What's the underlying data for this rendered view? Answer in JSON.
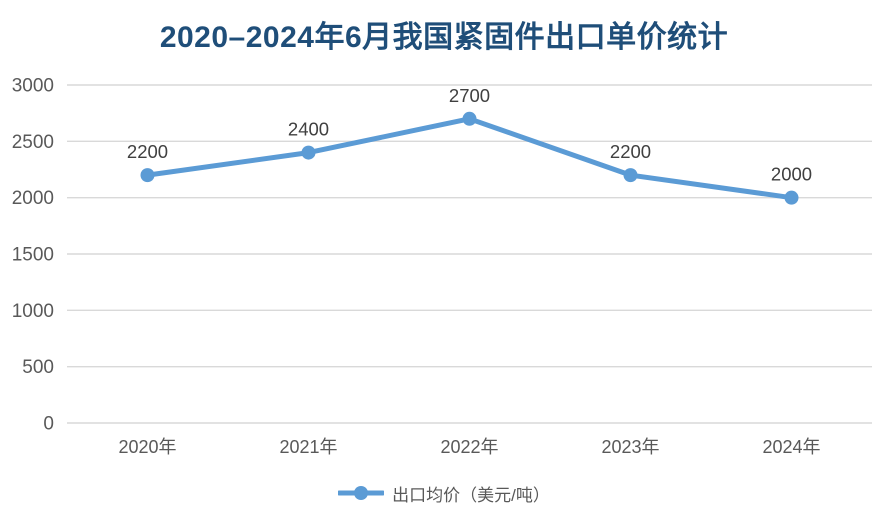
{
  "chart_data": {
    "type": "line",
    "title": "2020–2024年6月我国紧固件出口单价统计",
    "categories": [
      "2020年",
      "2021年",
      "2022年",
      "2023年",
      "2024年"
    ],
    "series": [
      {
        "name": "出口均价（美元/吨）",
        "values": [
          2200,
          2400,
          2700,
          2200,
          2000
        ]
      }
    ],
    "data_labels": [
      "2200",
      "2400",
      "2700",
      "2200",
      "2000"
    ],
    "ylim": [
      0,
      3000
    ],
    "yticks": [
      0,
      500,
      1000,
      1500,
      2000,
      2500,
      3000
    ],
    "xlabel": "",
    "ylabel": "",
    "grid": "horizontal",
    "legend_position": "bottom",
    "colors": {
      "line": "#5B9BD5",
      "marker": "#5B9BD5",
      "title": "#1F4E79",
      "axis_text": "#595959",
      "gridline": "#D9D9D9",
      "data_label": "#404040",
      "legend_text": "#595959",
      "background": "#FFFFFF"
    }
  }
}
